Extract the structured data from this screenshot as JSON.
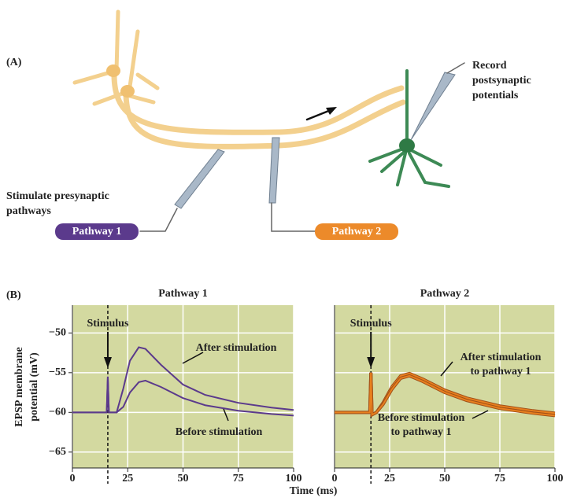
{
  "panel_a": {
    "label": "(A)",
    "record": [
      "Record",
      "postsynaptic",
      "potentials"
    ],
    "stimulate": [
      "Stimulate presynaptic",
      "pathways"
    ],
    "pathway1": "Pathway 1",
    "pathway2": "Pathway 2"
  },
  "panel_b": {
    "label": "(B)",
    "xlabel": "Time (ms)",
    "ylabel": [
      "EPSP membrane",
      "potential (mV)"
    ]
  },
  "chart_data": [
    {
      "type": "line",
      "title": "Pathway 1",
      "background": "#d3d9a0",
      "grid": true,
      "xlim": [
        0,
        100
      ],
      "xticks": [
        0,
        25,
        50,
        75,
        100
      ],
      "ylim": [
        -67,
        -46.5
      ],
      "yticks": [
        {
          "value": -50,
          "label": "−50"
        },
        {
          "value": -55,
          "label": "−55"
        },
        {
          "value": -60,
          "label": "−60"
        },
        {
          "value": -65,
          "label": "−65"
        }
      ],
      "stimulus": {
        "text": "Stimulus",
        "x": 16
      },
      "x": [
        0,
        15.5,
        16,
        16.5,
        20,
        23,
        26,
        30,
        33,
        40,
        50,
        60,
        75,
        90,
        100
      ],
      "series": [
        {
          "label_lines": [
            "After stimulation"
          ],
          "color": "#5b3a8c",
          "values": [
            -60,
            -60,
            -55.5,
            -60,
            -60,
            -57,
            -53.5,
            -51.8,
            -52,
            -54,
            -56.5,
            -57.8,
            -58.8,
            -59.4,
            -59.7
          ]
        },
        {
          "label_lines": [
            "Before stimulation"
          ],
          "color": "#5b3a8c",
          "values": [
            -60,
            -60,
            -55.5,
            -60,
            -60,
            -59.3,
            -57.5,
            -56.2,
            -56,
            -56.8,
            -58.2,
            -59.1,
            -59.8,
            -60.2,
            -60.4
          ]
        }
      ]
    },
    {
      "type": "line",
      "title": "Pathway 2",
      "background": "#d3d9a0",
      "grid": true,
      "xlim": [
        0,
        100
      ],
      "xticks": [
        0,
        25,
        50,
        75,
        100
      ],
      "ylim": [
        -67,
        -46.5
      ],
      "yticks": [
        -50,
        -55,
        -60,
        -65
      ],
      "stimulus": {
        "text": "Stimulus",
        "x": 16.5
      },
      "x": [
        0,
        16,
        16.5,
        17,
        19,
        22,
        26,
        30,
        34,
        40,
        50,
        60,
        75,
        90,
        100
      ],
      "series": [
        {
          "label_lines": [
            "After stimulation",
            "to pathway 1"
          ],
          "color": "#e8801e",
          "values": [
            -60,
            -60,
            -55,
            -60.3,
            -60,
            -58.8,
            -56.8,
            -55.4,
            -55.1,
            -55.8,
            -57.2,
            -58.2,
            -59.2,
            -59.8,
            -60.1
          ]
        },
        {
          "label_lines": [
            "Before stimulation",
            "to pathway 1"
          ],
          "color": "#e8801e",
          "values": [
            -60,
            -60,
            -55,
            -60.3,
            -60,
            -59,
            -57.1,
            -55.7,
            -55.4,
            -56.1,
            -57.5,
            -58.5,
            -59.5,
            -60.1,
            -60.4
          ]
        }
      ]
    }
  ]
}
